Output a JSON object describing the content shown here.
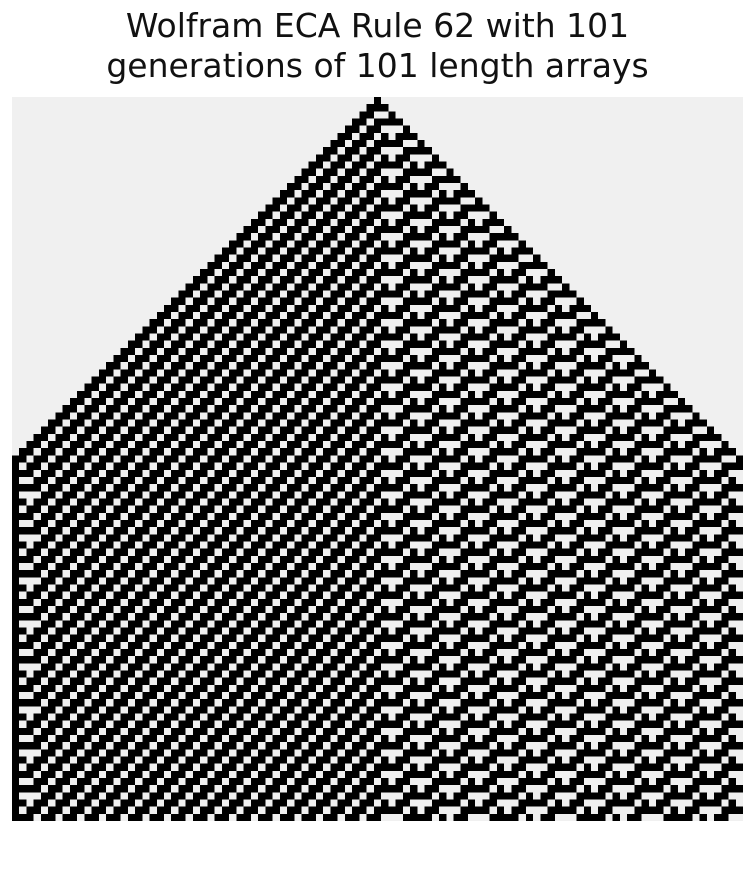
{
  "title": {
    "line1": "Wolfram ECA Rule 62 with 101",
    "line2": "generations of 101 length arrays"
  },
  "automaton": {
    "rule": 62,
    "generations": 101,
    "width": 101,
    "initial_state": "single live cell at center",
    "boundary": "dead cells outside array",
    "colors": {
      "alive": "#000000",
      "dead": "#f0f0f0"
    }
  }
}
